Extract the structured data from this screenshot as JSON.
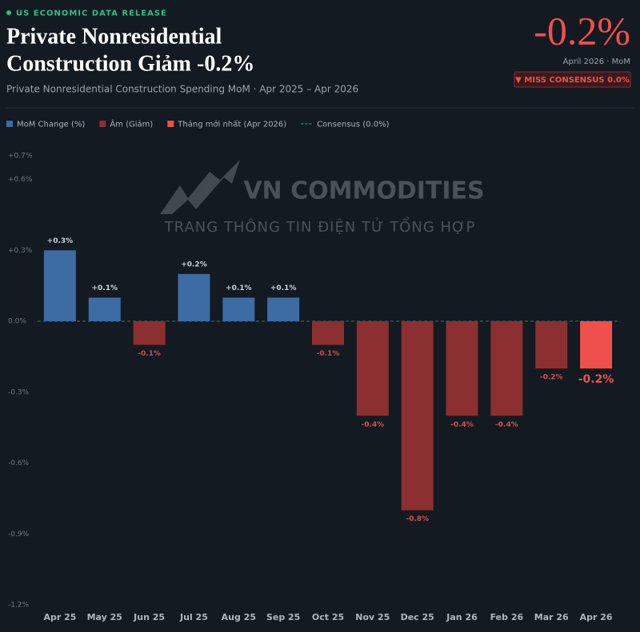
{
  "chart_data": {
    "type": "bar",
    "tag": "US ECONOMIC DATA RELEASE",
    "title": [
      "Private Nonresidential",
      "Construction Giảm -0.2%"
    ],
    "subtitle": "Private Nonresidential Construction Spending MoM · Apr 2025 – Apr 2026",
    "headline_value": "-0.2%",
    "headline_sub": "April 2026 · MoM",
    "badge": "▼ MISS CONSENSUS 0.0%",
    "watermark": [
      "VN COMMODITIES",
      "TRANG THÔNG TIN ĐIỆN TỬ TỔNG HỢP"
    ],
    "legend": [
      {
        "name": "MoM Change (%)",
        "color": "#3d6ba3"
      },
      {
        "name": "Âm (Giảm)",
        "color": "#8c2f30"
      },
      {
        "name": "Tháng mới nhất (Apr 2026)",
        "color": "#f0504c"
      },
      {
        "name": "Consensus (0.0%)",
        "color": "#2f7a6e"
      }
    ],
    "consensus": 0,
    "categories": [
      "Apr 25",
      "May 25",
      "Jun 25",
      "Jul 25",
      "Aug 25",
      "Sep 25",
      "Oct 25",
      "Nov 25",
      "Dec 25",
      "Jan 26",
      "Feb 26",
      "Mar 26",
      "Apr 26"
    ],
    "values": [
      0.3,
      0.1,
      -0.1,
      0.2,
      0.1,
      0.1,
      -0.1,
      -0.4,
      -0.8,
      -0.4,
      -0.4,
      -0.2,
      -0.2
    ],
    "value_labels": [
      "+0.3%",
      "+0.1%",
      "-0.1%",
      "+0.2%",
      "+0.1%",
      "+0.1%",
      "-0.1%",
      "-0.4%",
      "-0.8%",
      "-0.4%",
      "-0.4%",
      "-0.2%",
      "-0.2%"
    ],
    "ylim": [
      -1.2,
      0.7
    ],
    "yticks": [
      {
        "value": -1.2,
        "label": "-1.2%"
      },
      {
        "value": -0.9,
        "label": "-0.9%"
      },
      {
        "value": -0.6,
        "label": "-0.6%"
      },
      {
        "value": -0.3,
        "label": "-0.3%"
      },
      {
        "value": 0,
        "label": "0.0%"
      },
      {
        "value": 0.3,
        "label": "+0.3%"
      },
      {
        "value": 0.6,
        "label": "+0.6%"
      },
      {
        "value": 0.7,
        "label": "+0.7%"
      }
    ],
    "grid": false
  }
}
